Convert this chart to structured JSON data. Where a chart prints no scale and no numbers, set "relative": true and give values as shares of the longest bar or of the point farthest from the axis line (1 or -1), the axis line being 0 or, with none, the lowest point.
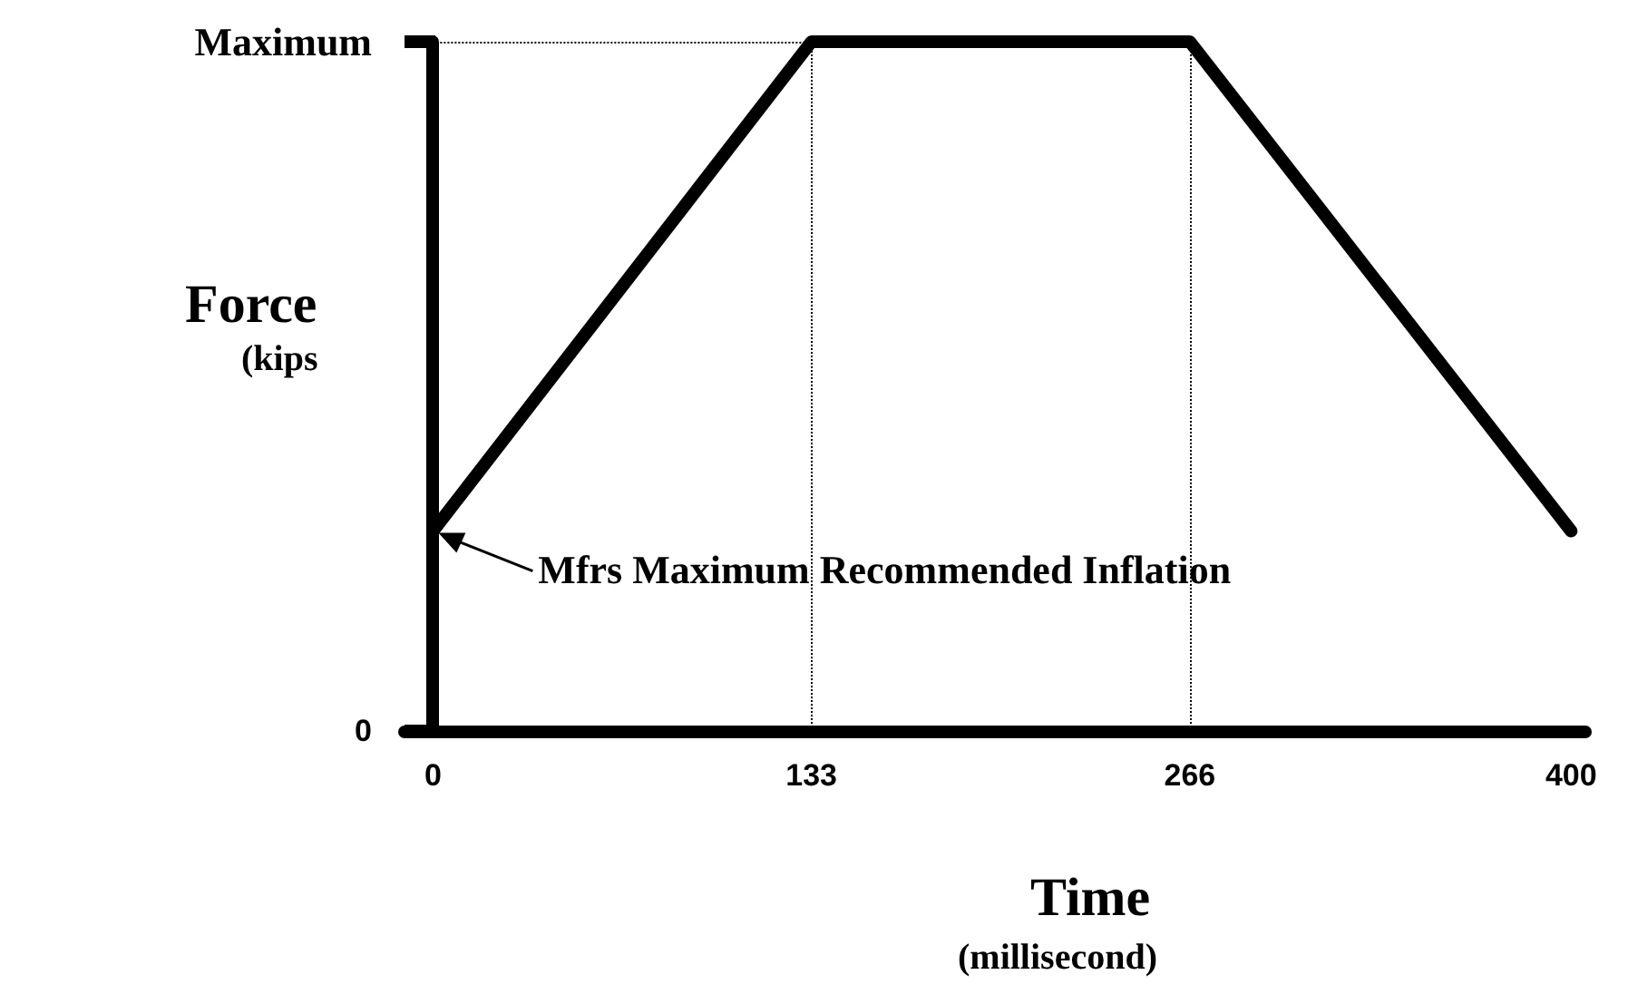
{
  "chart_data": {
    "type": "line",
    "relative": true,
    "xlabel": "Time\n(millisecond)",
    "ylabel": "Force\n(kips",
    "x": [
      0,
      133,
      266,
      400
    ],
    "series": [
      {
        "color": "#000000",
        "values": [
          0.29,
          1,
          1,
          0.29
        ]
      }
    ],
    "xlim": [
      -10,
      405
    ],
    "xticks": [
      0,
      133,
      266,
      400
    ],
    "grid": false,
    "line_style": "solid",
    "ref_lines": [
      {
        "axis": "x",
        "value": 133,
        "line_style": "dotted",
        "color": "#000000"
      },
      {
        "axis": "x",
        "value": 266,
        "line_style": "dotted",
        "color": "#000000"
      },
      {
        "axis": "y",
        "value": 1,
        "line_style": "dotted",
        "color": "#000000"
      }
    ],
    "annotations": [
      "Maximum",
      "0",
      {
        "text": "Mfrs Maximum Recommended Inflation",
        "x": 0,
        "y": 0.29
      }
    ]
  }
}
